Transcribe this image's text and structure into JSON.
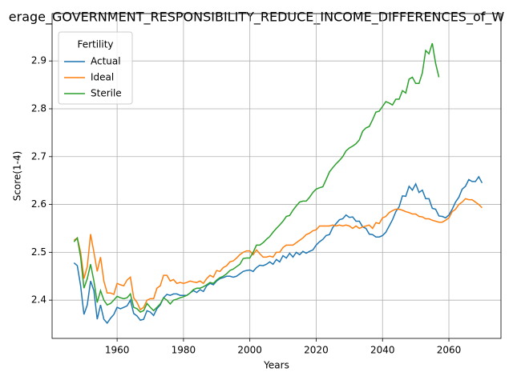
{
  "chart_data": {
    "type": "line",
    "title": "erage_GOVERNMENT_RESPONSIBILITY_REDUCE_INCOME_DIFFERENCES_of_W",
    "x_label": "Years",
    "y_label": "Score(1-4)",
    "legend_title": "Fertility",
    "legend": "upper left",
    "grid": true,
    "xlim": [
      1940.4,
      2075.7
    ],
    "ylim": [
      2.32,
      2.999
    ],
    "xticks": [
      1960,
      1980,
      2000,
      2020,
      2040,
      2060
    ],
    "yticks": [
      2.4,
      2.5,
      2.6,
      2.7,
      2.8,
      2.9
    ],
    "x": [
      1947,
      1948,
      1949,
      1950,
      1951,
      1952,
      1953,
      1954,
      1955,
      1956,
      1957,
      1958,
      1959,
      1960,
      1961,
      1962,
      1963,
      1964,
      1965,
      1966,
      1967,
      1968,
      1969,
      1970,
      1971,
      1972,
      1973,
      1974,
      1975,
      1976,
      1977,
      1978,
      1979,
      1980,
      1981,
      1982,
      1983,
      1984,
      1985,
      1986,
      1987,
      1988,
      1989,
      1990,
      1991,
      1992,
      1993,
      1994,
      1995,
      1996,
      1997,
      1998,
      1999,
      2000,
      2001,
      2002,
      2003,
      2004,
      2005,
      2006,
      2007,
      2008,
      2009,
      2010,
      2011,
      2012,
      2013,
      2014,
      2015,
      2016,
      2017,
      2018,
      2019,
      2020,
      2021,
      2022,
      2023,
      2024,
      2025,
      2026,
      2027,
      2028,
      2029,
      2030,
      2031,
      2032,
      2033,
      2034,
      2035,
      2036,
      2037,
      2038,
      2039,
      2040,
      2041,
      2042,
      2043,
      2044,
      2045,
      2046,
      2047,
      2048,
      2049,
      2050,
      2051,
      2052,
      2053,
      2054,
      2055,
      2056,
      2057,
      2058,
      2059,
      2060,
      2061,
      2062,
      2063,
      2064,
      2065,
      2066,
      2067,
      2068,
      2069,
      2070
    ],
    "series": [
      {
        "name": "Actual",
        "color": "#1f77b4",
        "values": [
          2.478,
          2.472,
          2.43,
          2.37,
          2.39,
          2.44,
          2.42,
          2.36,
          2.39,
          2.36,
          2.352,
          2.362,
          2.37,
          2.385,
          2.382,
          2.385,
          2.388,
          2.4,
          2.372,
          2.367,
          2.358,
          2.36,
          2.378,
          2.375,
          2.368,
          2.382,
          2.39,
          2.405,
          2.412,
          2.41,
          2.413,
          2.413,
          2.41,
          2.41,
          2.41,
          2.415,
          2.42,
          2.416,
          2.422,
          2.418,
          2.43,
          2.435,
          2.432,
          2.44,
          2.445,
          2.447,
          2.45,
          2.45,
          2.448,
          2.45,
          2.455,
          2.46,
          2.462,
          2.463,
          2.46,
          2.468,
          2.473,
          2.472,
          2.475,
          2.48,
          2.475,
          2.485,
          2.48,
          2.493,
          2.488,
          2.498,
          2.49,
          2.5,
          2.495,
          2.502,
          2.498,
          2.502,
          2.505,
          2.515,
          2.522,
          2.527,
          2.535,
          2.537,
          2.552,
          2.56,
          2.568,
          2.57,
          2.578,
          2.573,
          2.574,
          2.565,
          2.565,
          2.553,
          2.55,
          2.538,
          2.537,
          2.532,
          2.532,
          2.535,
          2.542,
          2.555,
          2.568,
          2.585,
          2.595,
          2.618,
          2.617,
          2.638,
          2.63,
          2.643,
          2.625,
          2.63,
          2.612,
          2.612,
          2.592,
          2.59,
          2.576,
          2.575,
          2.572,
          2.578,
          2.59,
          2.605,
          2.615,
          2.632,
          2.638,
          2.652,
          2.648,
          2.648,
          2.658,
          2.645
        ]
      },
      {
        "name": "Ideal",
        "color": "#ff7f0e",
        "values": [
          2.525,
          2.53,
          2.5,
          2.445,
          2.47,
          2.538,
          2.5,
          2.46,
          2.49,
          2.44,
          2.415,
          2.415,
          2.412,
          2.435,
          2.432,
          2.43,
          2.442,
          2.448,
          2.405,
          2.395,
          2.38,
          2.385,
          2.4,
          2.403,
          2.403,
          2.425,
          2.43,
          2.452,
          2.452,
          2.44,
          2.443,
          2.435,
          2.437,
          2.435,
          2.437,
          2.44,
          2.438,
          2.437,
          2.44,
          2.435,
          2.445,
          2.452,
          2.448,
          2.462,
          2.46,
          2.468,
          2.472,
          2.48,
          2.482,
          2.488,
          2.495,
          2.5,
          2.503,
          2.503,
          2.495,
          2.505,
          2.497,
          2.49,
          2.49,
          2.492,
          2.49,
          2.5,
          2.5,
          2.51,
          2.515,
          2.515,
          2.515,
          2.52,
          2.525,
          2.53,
          2.537,
          2.54,
          2.545,
          2.547,
          2.555,
          2.555,
          2.555,
          2.555,
          2.557,
          2.555,
          2.557,
          2.555,
          2.557,
          2.555,
          2.55,
          2.555,
          2.55,
          2.553,
          2.555,
          2.557,
          2.55,
          2.562,
          2.56,
          2.572,
          2.575,
          2.583,
          2.587,
          2.59,
          2.59,
          2.588,
          2.585,
          2.583,
          2.58,
          2.58,
          2.575,
          2.574,
          2.57,
          2.57,
          2.567,
          2.565,
          2.563,
          2.563,
          2.567,
          2.572,
          2.585,
          2.59,
          2.6,
          2.605,
          2.612,
          2.61,
          2.61,
          2.605,
          2.6,
          2.593
        ]
      },
      {
        "name": "Sterile",
        "color": "#2ca02c",
        "values": [
          2.522,
          2.53,
          2.49,
          2.425,
          2.445,
          2.475,
          2.44,
          2.395,
          2.42,
          2.4,
          2.39,
          2.393,
          2.4,
          2.408,
          2.405,
          2.403,
          2.405,
          2.413,
          2.385,
          2.382,
          2.375,
          2.378,
          2.393,
          2.385,
          2.378,
          2.385,
          2.392,
          2.405,
          2.4,
          2.392,
          2.4,
          2.402,
          2.405,
          2.407,
          2.41,
          2.415,
          2.422,
          2.425,
          2.425,
          2.428,
          2.432,
          2.437,
          2.435,
          2.442,
          2.447,
          2.45,
          2.455,
          2.462,
          2.465,
          2.47,
          2.475,
          2.487,
          2.488,
          2.488,
          2.5,
          2.515,
          2.515,
          2.52,
          2.527,
          2.533,
          2.542,
          2.55,
          2.557,
          2.565,
          2.575,
          2.577,
          2.588,
          2.597,
          2.605,
          2.607,
          2.607,
          2.615,
          2.625,
          2.632,
          2.635,
          2.637,
          2.652,
          2.668,
          2.677,
          2.685,
          2.692,
          2.7,
          2.712,
          2.718,
          2.722,
          2.727,
          2.735,
          2.753,
          2.76,
          2.763,
          2.777,
          2.793,
          2.795,
          2.805,
          2.815,
          2.812,
          2.808,
          2.82,
          2.82,
          2.838,
          2.833,
          2.862,
          2.866,
          2.853,
          2.853,
          2.875,
          2.922,
          2.915,
          2.937,
          2.895,
          2.866,
          null,
          null,
          null,
          null,
          null,
          null,
          null,
          null,
          null,
          null,
          null,
          null,
          null
        ]
      }
    ]
  }
}
